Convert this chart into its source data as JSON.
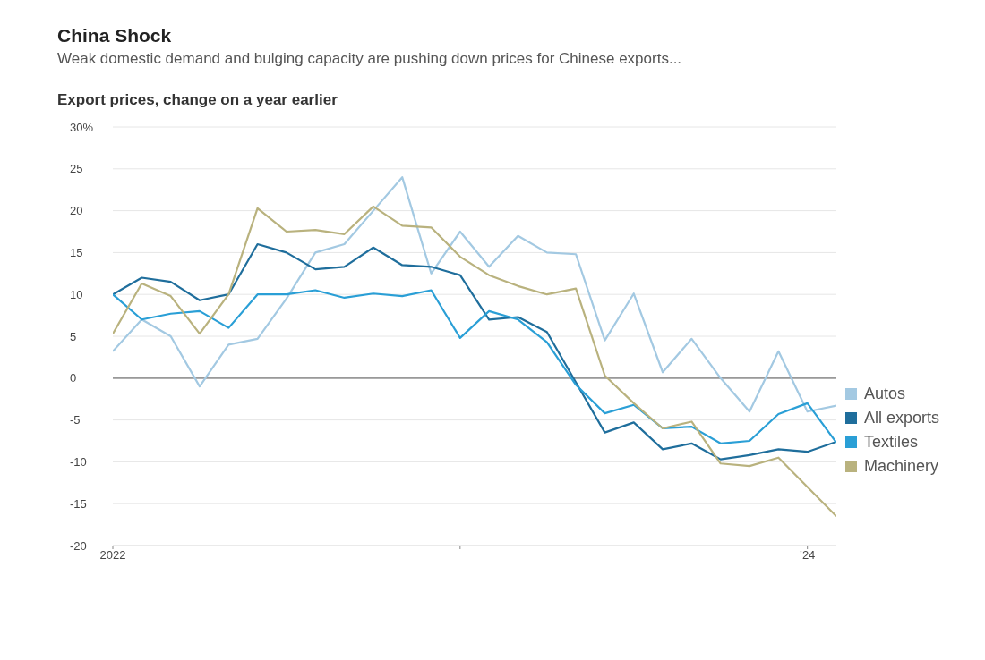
{
  "chart_data": {
    "type": "line",
    "title": "China Shock",
    "subtitle": "Weak domestic demand and bulging capacity are pushing down prices for Chinese exports...",
    "ylabel": "Export prices, change on a year earlier",
    "x": [
      "2022-01",
      "2022-02",
      "2022-03",
      "2022-04",
      "2022-05",
      "2022-06",
      "2022-07",
      "2022-08",
      "2022-09",
      "2022-10",
      "2022-11",
      "2022-12",
      "2023-01",
      "2023-02",
      "2023-03",
      "2023-04",
      "2023-05",
      "2023-06",
      "2023-07",
      "2023-08",
      "2023-09",
      "2023-10",
      "2023-11",
      "2023-12",
      "2024-01",
      "2024-02"
    ],
    "series": [
      {
        "name": "Autos",
        "color": "#a3c9e2",
        "values": [
          3.2,
          7,
          5,
          -1,
          4,
          4.7,
          9.5,
          15,
          16,
          20,
          24,
          12.5,
          17.5,
          13.3,
          17,
          15,
          14.8,
          4.5,
          10.1,
          0.7,
          4.7,
          0,
          -4,
          3.2,
          -4,
          -3.3
        ]
      },
      {
        "name": "All exports",
        "color": "#1f6e9c",
        "values": [
          10,
          12,
          11.5,
          9.3,
          10,
          16,
          15,
          13,
          13.3,
          15.6,
          13.5,
          13.3,
          12.3,
          7,
          7.3,
          5.5,
          -0.5,
          -6.5,
          -5.3,
          -8.5,
          -7.8,
          -9.7,
          -9.2,
          -8.5,
          -8.8,
          -7.6
        ]
      },
      {
        "name": "Textiles",
        "color": "#2a9fd6",
        "values": [
          10,
          7,
          7.7,
          8,
          6,
          10,
          10,
          10.5,
          9.6,
          10.1,
          9.8,
          10.5,
          4.8,
          8,
          7,
          4.3,
          -0.8,
          -4.2,
          -3.2,
          -6,
          -5.8,
          -7.8,
          -7.5,
          -4.3,
          -3,
          -7.7
        ]
      },
      {
        "name": "Machinery",
        "color": "#b9b27e",
        "values": [
          5.3,
          11.3,
          9.8,
          5.3,
          10,
          20.3,
          17.5,
          17.7,
          17.2,
          20.5,
          18.2,
          18,
          14.5,
          12.3,
          11,
          10,
          10.7,
          0.3,
          -3,
          -6,
          -5.2,
          -10.2,
          -10.5,
          -9.5,
          -13,
          -16.5
        ]
      }
    ],
    "xlim": [
      "2022-01",
      "2024-02"
    ],
    "xticks": [
      {
        "value": "2022-01",
        "label": "2022"
      },
      {
        "value": "2023-01",
        "label": null
      },
      {
        "value": "2024-01",
        "label": "’24"
      }
    ],
    "ylim": [
      -20,
      30
    ],
    "yticks": [
      -20,
      -15,
      -10,
      -5,
      0,
      5,
      10,
      15,
      20,
      25,
      {
        "value": 30,
        "label": "30%"
      }
    ],
    "ref_lines": [
      {
        "axis": "y",
        "value": 0,
        "color": "#999999"
      }
    ],
    "grid": "y",
    "legend": "right",
    "marker": "none",
    "line_style": "solid"
  }
}
